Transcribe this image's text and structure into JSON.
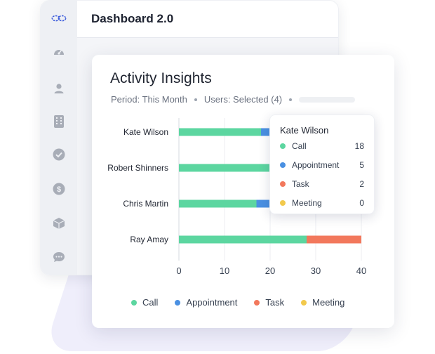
{
  "window": {
    "title": "Dashboard 2.0"
  },
  "sidebar": {
    "items": [
      {
        "icon": "logo-icon"
      },
      {
        "icon": "speedometer-icon"
      },
      {
        "icon": "user-icon"
      },
      {
        "icon": "building-icon"
      },
      {
        "icon": "check-circle-icon"
      },
      {
        "icon": "dollar-icon"
      },
      {
        "icon": "box-icon"
      },
      {
        "icon": "chat-icon"
      }
    ]
  },
  "card": {
    "title": "Activity Insights",
    "period_label": "Period: This Month",
    "users_label": "Users: Selected (4)"
  },
  "colors": {
    "call": "#5cd6a0",
    "appointment": "#4a90e2",
    "task": "#f2785c",
    "meeting": "#f2c94c"
  },
  "chart_data": {
    "type": "bar",
    "orientation": "horizontal",
    "stacked": true,
    "categories": [
      "Kate Wilson",
      "Robert Shinners",
      "Chris Martin",
      "Ray Amay"
    ],
    "series": [
      {
        "name": "Call",
        "color": "#5cd6a0",
        "values": [
          18,
          25,
          17,
          28
        ]
      },
      {
        "name": "Appointment",
        "color": "#4a90e2",
        "values": [
          5,
          3,
          3,
          0
        ]
      },
      {
        "name": "Task",
        "color": "#f2785c",
        "values": [
          2,
          0,
          0,
          12
        ]
      },
      {
        "name": "Meeting",
        "color": "#f2c94c",
        "values": [
          0,
          0,
          0,
          0
        ]
      }
    ],
    "xticks": [
      "0",
      "10",
      "20",
      "30",
      "40"
    ],
    "xlim": [
      0,
      40
    ],
    "grid": true,
    "legend": "bottom"
  },
  "tooltip": {
    "title": "Kate Wilson",
    "rows": [
      {
        "label": "Call",
        "value": "18"
      },
      {
        "label": "Appointment",
        "value": "5"
      },
      {
        "label": "Task",
        "value": "2"
      },
      {
        "label": "Meeting",
        "value": "0"
      }
    ]
  }
}
